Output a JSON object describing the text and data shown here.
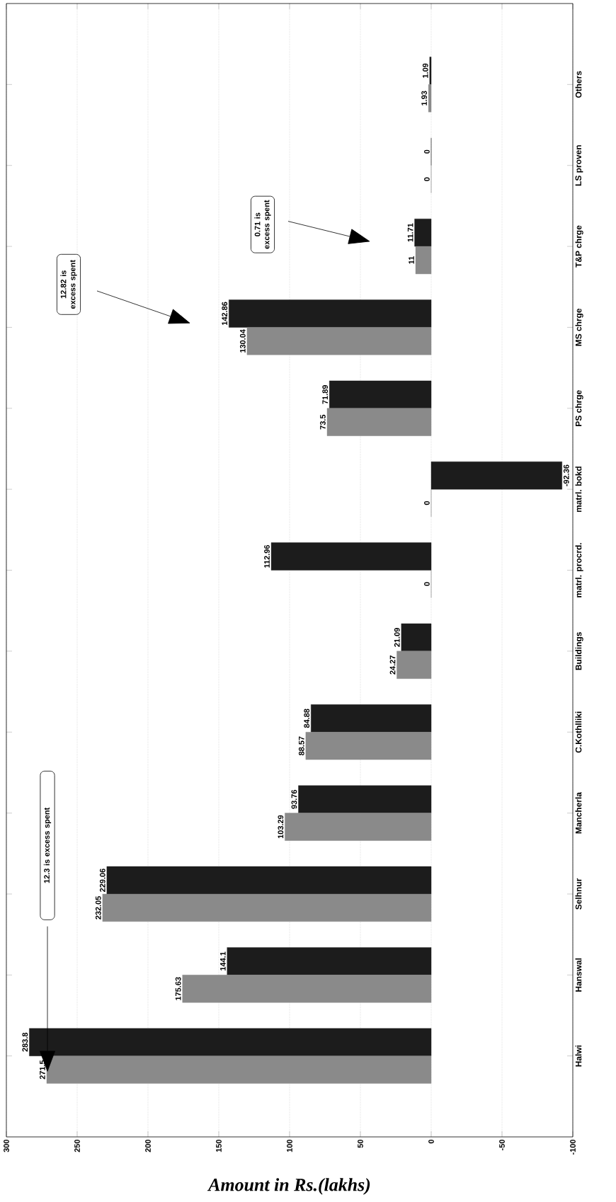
{
  "chart_data": {
    "type": "bar",
    "orientation": "horizontal",
    "xlabel": "Amount in Rs.(lakhs)",
    "categories": [
      "Others",
      "LS proven",
      "T&P chrge",
      "MS chrge",
      "PS chrge",
      "matrl. bokd",
      "matrl. procrd.",
      "Buildings",
      "C.Kothlliki",
      "Mancherla",
      "Selhnur",
      "Hanswal",
      "Halwi"
    ],
    "series": [
      {
        "color": "#1c1c1c",
        "values": [
          1.09,
          0,
          11.71,
          142.86,
          71.89,
          -92.36,
          112.96,
          21.09,
          84.88,
          93.76,
          229.06,
          144.1,
          283.8
        ]
      },
      {
        "color": "#8a8a8a",
        "values": [
          1.93,
          0,
          11,
          130.04,
          73.5,
          0,
          0,
          24.27,
          88.57,
          103.29,
          232.05,
          175.63,
          271.5
        ]
      }
    ],
    "xlim": [
      300,
      -100
    ],
    "xticks": [
      -100,
      -50,
      0,
      50,
      100,
      150,
      200,
      250,
      300
    ],
    "grid": "x",
    "data_labels": true,
    "annotations": [
      "12.82 is excess spent",
      "0.71 is excess spent",
      "12.3 is excess spent"
    ]
  }
}
